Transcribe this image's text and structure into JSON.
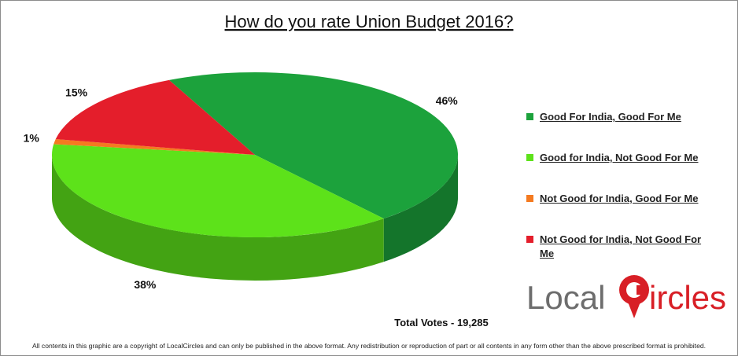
{
  "chart_data": {
    "type": "pie",
    "title": "How do you rate Union Budget 2016?",
    "categories": [
      "Good For India, Good For Me",
      "Good for India, Not Good For Me",
      "Not Good for India, Good For Me",
      "Not Good for India, Not Good For Me"
    ],
    "values": [
      46,
      38,
      1,
      15
    ],
    "value_labels": [
      "46%",
      "38%",
      "1%",
      "15%"
    ],
    "colors": [
      "#1ca23c",
      "#5de21a",
      "#f47a20",
      "#e41e2b"
    ],
    "note": "Total Votes - 19,285"
  },
  "logo": {
    "left": "Local",
    "right": "ircles"
  },
  "footer": "All contents in this graphic are a copyright of LocalCircles and can only be published in the above format. Any redistribution or reproduction of part or all contents in any form other than the above prescribed format is prohibited."
}
